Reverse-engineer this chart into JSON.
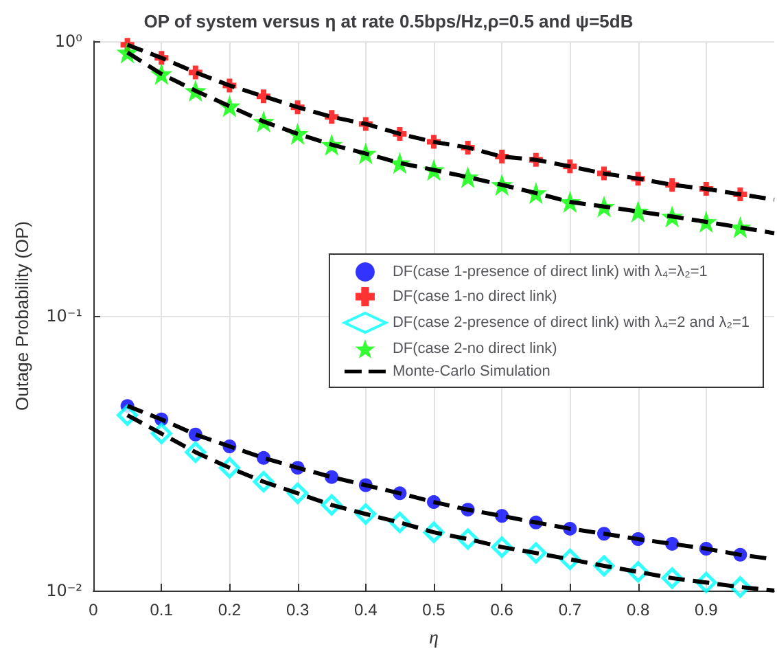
{
  "chart_data": {
    "type": "scatter",
    "title": "OP of system versus η at rate 0.5bps/Hz,ρ=0.5 and ψ=5dB",
    "xlabel": "η",
    "ylabel": "Outage Probability (OP)",
    "x": [
      0.05,
      0.1,
      0.15,
      0.2,
      0.25,
      0.3,
      0.35,
      0.4,
      0.45,
      0.5,
      0.55,
      0.6,
      0.65,
      0.7,
      0.75,
      0.8,
      0.85,
      0.9,
      0.95
    ],
    "series": [
      {
        "name": "DF(case 1-presence of direct link) with λ₄=λ₂=1",
        "color": "#0000ff",
        "marker": "circle",
        "values": [
          0.047,
          0.042,
          0.037,
          0.0335,
          0.0304,
          0.028,
          0.0259,
          0.0242,
          0.0226,
          0.021,
          0.0197,
          0.0187,
          0.0177,
          0.0168,
          0.0161,
          0.0154,
          0.0148,
          0.0142,
          0.0135
        ]
      },
      {
        "name": "DF(case 1-no direct link)",
        "color": "#ff0000",
        "marker": "cross",
        "values": [
          0.97,
          0.87,
          0.77,
          0.69,
          0.63,
          0.575,
          0.53,
          0.5,
          0.46,
          0.43,
          0.41,
          0.38,
          0.37,
          0.35,
          0.33,
          0.316,
          0.3,
          0.29,
          0.277
        ]
      },
      {
        "name": "DF(case 2-presence of direct link) with λ₄=2 and λ₂=1",
        "color": "#00ffff",
        "marker": "diamond",
        "values": [
          0.0435,
          0.0373,
          0.0319,
          0.028,
          0.0249,
          0.0226,
          0.0205,
          0.019,
          0.0177,
          0.0163,
          0.0154,
          0.0144,
          0.0137,
          0.013,
          0.0123,
          0.0117,
          0.0111,
          0.0107,
          0.0103
        ]
      },
      {
        "name": "DF(case 2-no direct link)",
        "color": "#00ff00",
        "marker": "star",
        "values": [
          0.91,
          0.76,
          0.66,
          0.58,
          0.51,
          0.46,
          0.42,
          0.39,
          0.36,
          0.34,
          0.32,
          0.3,
          0.28,
          0.26,
          0.25,
          0.24,
          0.23,
          0.22,
          0.21
        ]
      },
      {
        "type": "line",
        "name": "Monte-Carlo Simulation",
        "color": "#000000",
        "marker": "none",
        "line_style": "dashed",
        "x": [
          0.05,
          0.1,
          0.15,
          0.2,
          0.25,
          0.3,
          0.35,
          0.4,
          0.45,
          0.5,
          0.55,
          0.6,
          0.65,
          0.7,
          0.75,
          0.8,
          0.85,
          0.9,
          0.95,
          1
        ],
        "values": [
          0.047,
          0.042,
          0.037,
          0.0335,
          0.0304,
          0.028,
          0.0259,
          0.0242,
          0.0226,
          0.021,
          0.0197,
          0.0187,
          0.0177,
          0.0168,
          0.0161,
          0.0154,
          0.0148,
          0.0142,
          0.0135,
          0.013
        ]
      },
      {
        "type": "line",
        "color": "#000000",
        "marker": "none",
        "line_style": "dashed",
        "x": [
          0.05,
          0.1,
          0.15,
          0.2,
          0.25,
          0.3,
          0.35,
          0.4,
          0.45,
          0.5,
          0.55,
          0.6,
          0.65,
          0.7,
          0.75,
          0.8,
          0.85,
          0.9,
          0.95,
          1
        ],
        "values": [
          0.97,
          0.87,
          0.77,
          0.69,
          0.63,
          0.575,
          0.53,
          0.5,
          0.46,
          0.43,
          0.41,
          0.38,
          0.37,
          0.35,
          0.33,
          0.316,
          0.3,
          0.29,
          0.277,
          0.265
        ]
      },
      {
        "type": "line",
        "color": "#000000",
        "marker": "none",
        "line_style": "dashed",
        "x": [
          0.05,
          0.1,
          0.15,
          0.2,
          0.25,
          0.3,
          0.35,
          0.4,
          0.45,
          0.5,
          0.55,
          0.6,
          0.65,
          0.7,
          0.75,
          0.8,
          0.85,
          0.9,
          0.95,
          1
        ],
        "values": [
          0.0435,
          0.0373,
          0.0319,
          0.028,
          0.0249,
          0.0226,
          0.0205,
          0.019,
          0.0177,
          0.0163,
          0.0154,
          0.0144,
          0.0137,
          0.013,
          0.0123,
          0.0117,
          0.0111,
          0.0107,
          0.0103,
          0.01
        ]
      },
      {
        "type": "line",
        "color": "#000000",
        "marker": "none",
        "line_style": "dashed",
        "x": [
          0.05,
          0.1,
          0.15,
          0.2,
          0.25,
          0.3,
          0.35,
          0.4,
          0.45,
          0.5,
          0.55,
          0.6,
          0.65,
          0.7,
          0.75,
          0.8,
          0.85,
          0.9,
          0.95,
          1
        ],
        "values": [
          0.91,
          0.76,
          0.66,
          0.58,
          0.51,
          0.46,
          0.42,
          0.39,
          0.36,
          0.34,
          0.32,
          0.3,
          0.28,
          0.26,
          0.25,
          0.24,
          0.23,
          0.22,
          0.21,
          0.2
        ]
      }
    ],
    "xlim": [
      0,
      1
    ],
    "xticks": [
      0,
      0.1,
      0.2,
      0.3,
      0.4,
      0.5,
      0.6,
      0.7,
      0.8,
      0.9
    ],
    "ylim": [
      0.01,
      1
    ],
    "yticks": [
      {
        "value": 0.01,
        "label": "10⁻²"
      },
      {
        "value": 0.1,
        "label": "10⁻¹"
      },
      {
        "value": 1,
        "label": "10⁰"
      }
    ],
    "log": "y",
    "grid": true,
    "legend": "right"
  }
}
